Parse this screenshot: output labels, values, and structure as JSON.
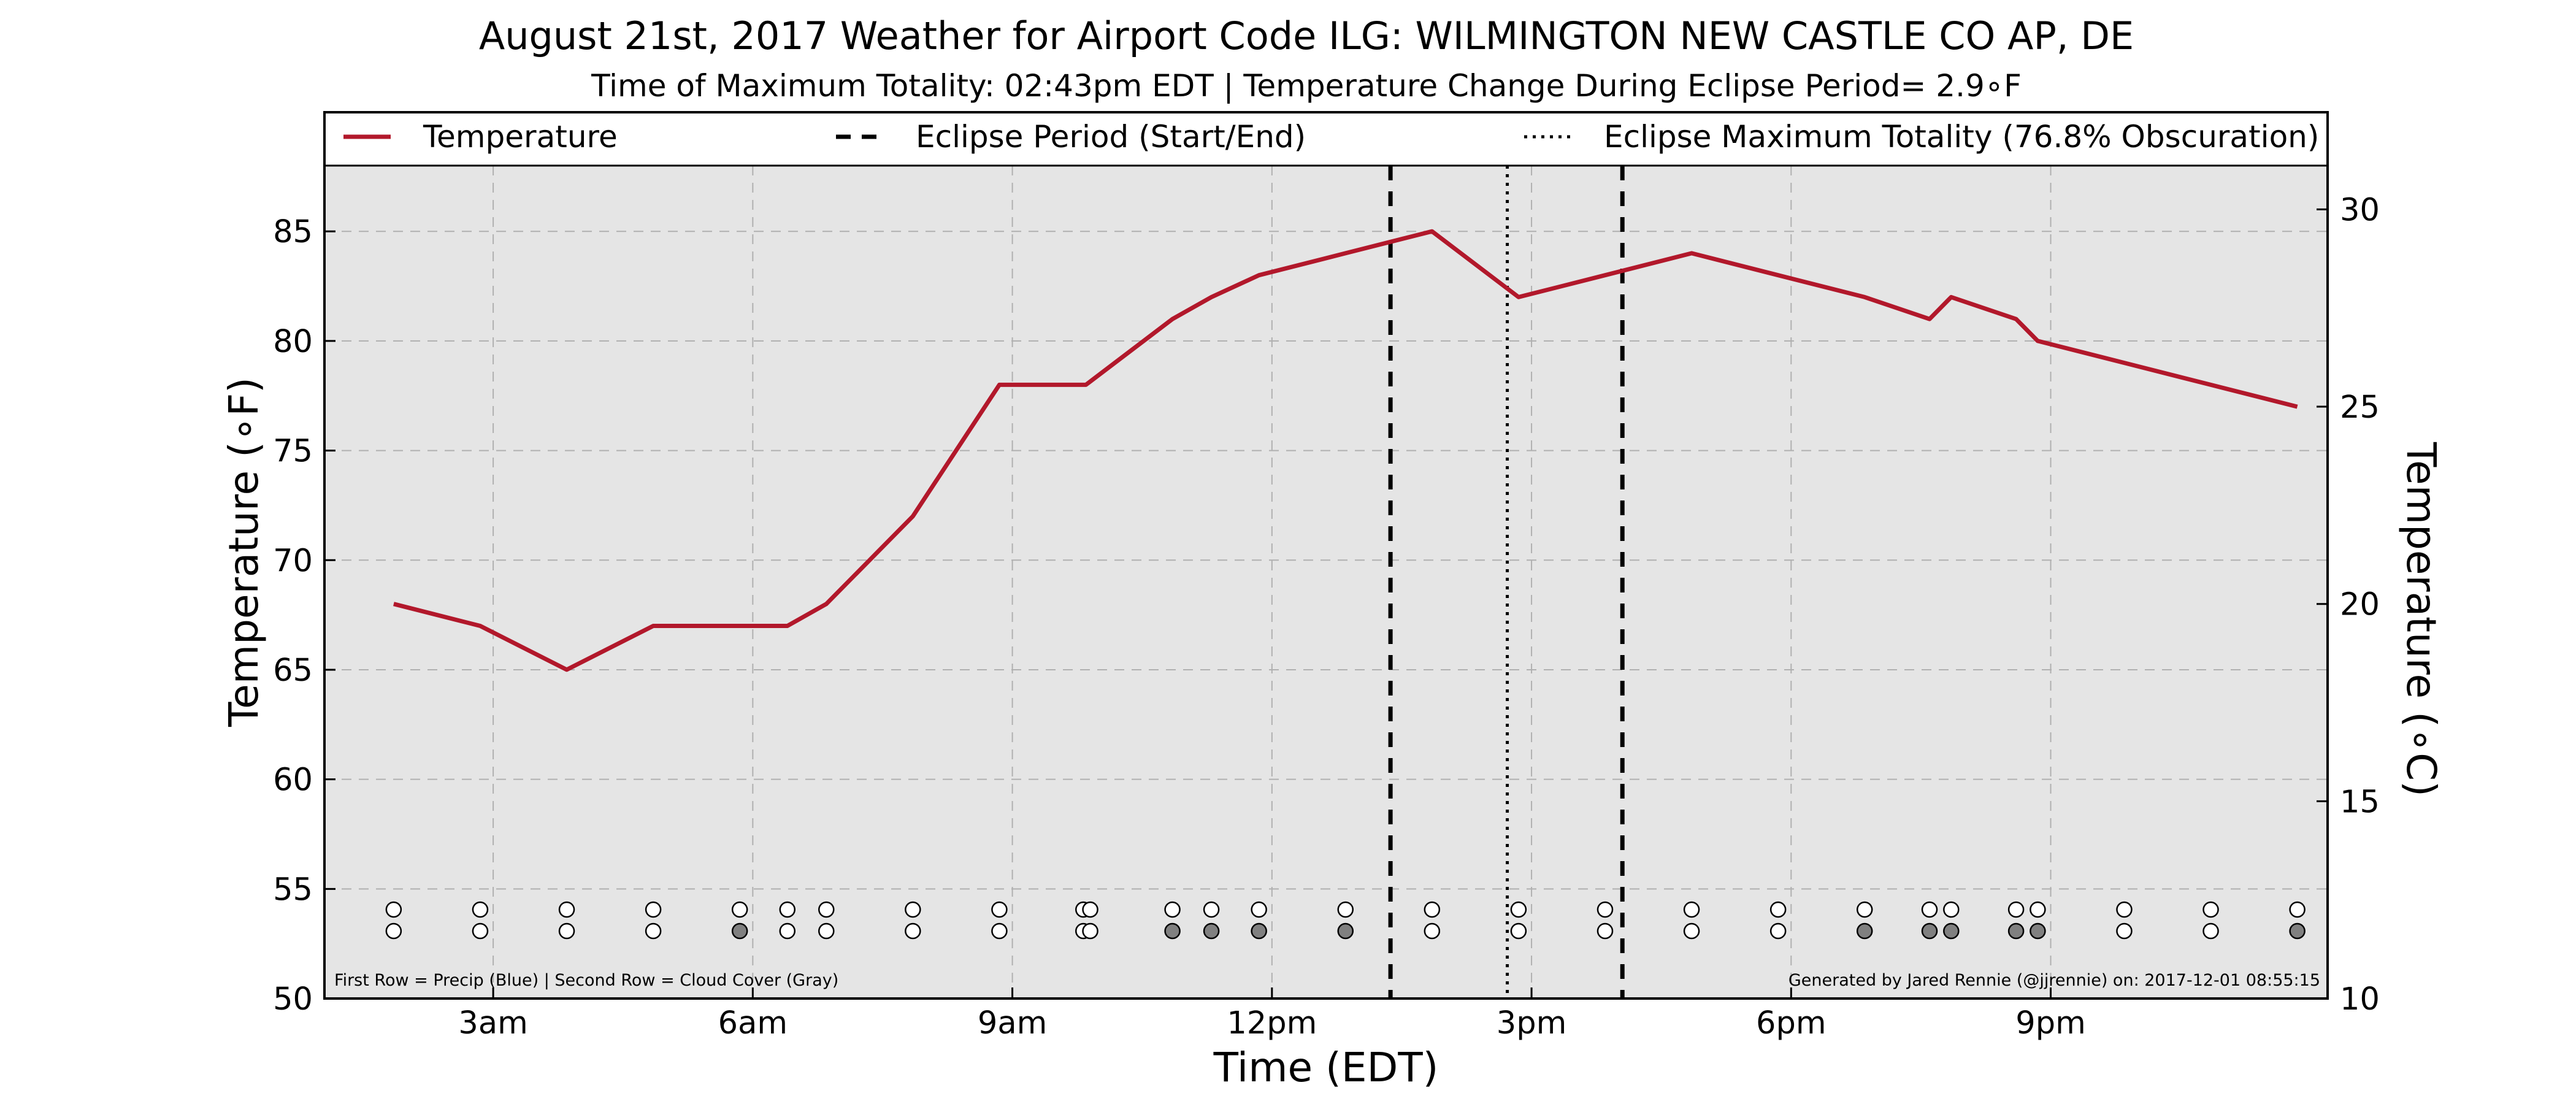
{
  "chart_data": {
    "type": "line",
    "title": "August 21st, 2017 Weather for Airport Code ILG: WILMINGTON NEW CASTLE CO AP, DE",
    "subtitle": "Time of Maximum Totality: 02:43pm EDT | Temperature Change During Eclipse Period= 2.9∘F",
    "xlabel": "Time (EDT)",
    "ylabel": "Temperature (∘F)",
    "ylabel_right": "Temperature (∘C)",
    "xlim": [
      1.05,
      24.2
    ],
    "ylim": [
      50,
      88
    ],
    "ylim_right": [
      10,
      31.11
    ],
    "xticks": [
      {
        "value": 3,
        "label": "3am"
      },
      {
        "value": 6,
        "label": "6am"
      },
      {
        "value": 9,
        "label": "9am"
      },
      {
        "value": 12,
        "label": "12pm"
      },
      {
        "value": 15,
        "label": "3pm"
      },
      {
        "value": 18,
        "label": "6pm"
      },
      {
        "value": 21,
        "label": "9pm"
      }
    ],
    "yticks": [
      50,
      55,
      60,
      65,
      70,
      75,
      80,
      85
    ],
    "yticks_right": [
      10,
      15,
      20,
      25,
      30
    ],
    "grid": true,
    "legend_position": "top",
    "legend": [
      {
        "label": "Temperature",
        "style": "solid",
        "color": "#b2182b"
      },
      {
        "label": "Eclipse Period (Start/End)",
        "style": "dashed",
        "color": "#000000"
      },
      {
        "label": "Eclipse Maximum Totality (76.8% Obscuration)",
        "style": "dotted",
        "color": "#000000"
      }
    ],
    "series": [
      {
        "name": "Temperature",
        "color": "#b2182b",
        "x": [
          1.85,
          2.85,
          3.85,
          4.85,
          5.85,
          6.4,
          6.85,
          7.85,
          8.85,
          9.85,
          10.85,
          11.3,
          11.85,
          12.85,
          13.85,
          14.85,
          15.85,
          16.85,
          17.85,
          18.85,
          19.6,
          19.85,
          20.6,
          20.85,
          21.85,
          22.85,
          23.85
        ],
        "values": [
          68,
          67,
          65,
          67,
          67,
          67,
          68,
          72,
          78,
          78,
          81,
          82,
          83,
          84,
          85,
          82,
          83,
          84,
          83,
          82,
          81,
          82,
          81,
          80,
          79,
          78,
          77
        ]
      }
    ],
    "eclipse_start": 13.37,
    "eclipse_end": 16.05,
    "eclipse_max": 14.72,
    "obs_times": [
      1.85,
      2.85,
      3.85,
      4.85,
      5.85,
      6.4,
      6.85,
      7.85,
      8.85,
      9.82,
      9.9,
      10.85,
      11.3,
      11.85,
      12.85,
      13.85,
      14.85,
      15.85,
      16.85,
      17.85,
      18.85,
      19.6,
      19.85,
      20.6,
      20.85,
      21.85,
      22.85,
      23.85
    ],
    "precip_row": [
      "white",
      "white",
      "white",
      "white",
      "white",
      "white",
      "white",
      "white",
      "white",
      "white",
      "white",
      "white",
      "white",
      "white",
      "white",
      "white",
      "white",
      "white",
      "white",
      "white",
      "white",
      "white",
      "white",
      "white",
      "white",
      "white",
      "white",
      "white"
    ],
    "cloud_row": [
      "white",
      "white",
      "white",
      "white",
      "gray",
      "white",
      "white",
      "white",
      "white",
      "white",
      "white",
      "gray",
      "gray",
      "gray",
      "gray",
      "white",
      "white",
      "white",
      "white",
      "white",
      "gray",
      "gray",
      "gray",
      "gray",
      "gray",
      "white",
      "white",
      "gray"
    ],
    "note_left": "First Row = Precip (Blue) | Second Row = Cloud Cover (Gray)",
    "note_right": "Generated by Jared Rennie (@jjrennie) on: 2017-12-01 08:55:15",
    "colors": {
      "plot_bg": "#e5e5e5",
      "grid": "#b0b0b0",
      "line": "#b2182b",
      "gray_marker": "#808080",
      "white_marker": "#ffffff"
    }
  }
}
